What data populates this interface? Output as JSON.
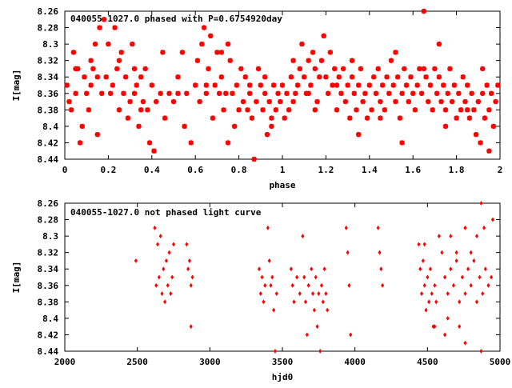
{
  "chart_data": [
    {
      "type": "scatter",
      "title": "040055-1027.0 phased with P=0.6754920day",
      "xlabel": "phase",
      "ylabel": "I[mag]",
      "xlim": [
        0,
        2
      ],
      "ylim": [
        8.26,
        8.44
      ],
      "y_inverted": true,
      "x_ticks": [
        "0",
        "0.2",
        "0.4",
        "0.6",
        "0.8",
        "1",
        "1.2",
        "1.4",
        "1.6",
        "1.8",
        "2"
      ],
      "y_ticks": [
        "8.26",
        "8.28",
        "8.3",
        "8.32",
        "8.34",
        "8.36",
        "8.38",
        "8.4",
        "8.42",
        "8.44"
      ],
      "marker_color": "#ff0000",
      "marker": "star",
      "grid": false,
      "points": [
        [
          0.01,
          8.35
        ],
        [
          0.02,
          8.37
        ],
        [
          0.03,
          8.38
        ],
        [
          0.04,
          8.31
        ],
        [
          0.05,
          8.36
        ],
        [
          0.06,
          8.33
        ],
        [
          0.07,
          8.42
        ],
        [
          0.08,
          8.4
        ],
        [
          0.09,
          8.34
        ],
        [
          0.1,
          8.36
        ],
        [
          0.11,
          8.38
        ],
        [
          0.12,
          8.35
        ],
        [
          0.13,
          8.33
        ],
        [
          0.14,
          8.3
        ],
        [
          0.15,
          8.34
        ],
        [
          0.16,
          8.28
        ],
        [
          0.17,
          8.36
        ],
        [
          0.18,
          8.27
        ],
        [
          0.19,
          8.34
        ],
        [
          0.2,
          8.3
        ],
        [
          0.21,
          8.36
        ],
        [
          0.22,
          8.35
        ],
        [
          0.23,
          8.28
        ],
        [
          0.24,
          8.33
        ],
        [
          0.25,
          8.38
        ],
        [
          0.26,
          8.31
        ],
        [
          0.27,
          8.36
        ],
        [
          0.28,
          8.34
        ],
        [
          0.29,
          8.39
        ],
        [
          0.3,
          8.37
        ],
        [
          0.31,
          8.3
        ],
        [
          0.32,
          8.36
        ],
        [
          0.33,
          8.35
        ],
        [
          0.34,
          8.4
        ],
        [
          0.35,
          8.34
        ],
        [
          0.36,
          8.37
        ],
        [
          0.37,
          8.33
        ],
        [
          0.38,
          8.38
        ],
        [
          0.39,
          8.42
        ],
        [
          0.4,
          8.35
        ],
        [
          0.41,
          8.43
        ],
        [
          0.42,
          8.37
        ],
        [
          0.44,
          8.36
        ],
        [
          0.46,
          8.39
        ],
        [
          0.48,
          8.36
        ],
        [
          0.5,
          8.37
        ],
        [
          0.52,
          8.34
        ],
        [
          0.54,
          8.31
        ],
        [
          0.56,
          8.36
        ],
        [
          0.58,
          8.42
        ],
        [
          0.6,
          8.35
        ],
        [
          0.61,
          8.32
        ],
        [
          0.62,
          8.37
        ],
        [
          0.63,
          8.3
        ],
        [
          0.64,
          8.28
        ],
        [
          0.65,
          8.36
        ],
        [
          0.66,
          8.33
        ],
        [
          0.67,
          8.29
        ],
        [
          0.68,
          8.39
        ],
        [
          0.69,
          8.35
        ],
        [
          0.7,
          8.31
        ],
        [
          0.71,
          8.36
        ],
        [
          0.72,
          8.34
        ],
        [
          0.73,
          8.38
        ],
        [
          0.74,
          8.36
        ],
        [
          0.75,
          8.3
        ],
        [
          0.76,
          8.32
        ],
        [
          0.77,
          8.36
        ],
        [
          0.78,
          8.4
        ],
        [
          0.79,
          8.35
        ],
        [
          0.8,
          8.38
        ],
        [
          0.81,
          8.33
        ],
        [
          0.82,
          8.37
        ],
        [
          0.83,
          8.34
        ],
        [
          0.84,
          8.38
        ],
        [
          0.85,
          8.35
        ],
        [
          0.86,
          8.39
        ],
        [
          0.87,
          8.44
        ],
        [
          0.88,
          8.37
        ],
        [
          0.89,
          8.33
        ],
        [
          0.9,
          8.35
        ],
        [
          0.91,
          8.38
        ],
        [
          0.92,
          8.36
        ],
        [
          0.93,
          8.41
        ],
        [
          0.94,
          8.37
        ],
        [
          0.95,
          8.39
        ],
        [
          0.96,
          8.35
        ],
        [
          0.97,
          8.38
        ],
        [
          0.98,
          8.36
        ],
        [
          0.99,
          8.37
        ],
        [
          1.0,
          8.35
        ],
        [
          1.01,
          8.39
        ],
        [
          1.02,
          8.36
        ],
        [
          1.03,
          8.38
        ],
        [
          1.04,
          8.34
        ],
        [
          1.05,
          8.32
        ],
        [
          1.06,
          8.36
        ],
        [
          1.07,
          8.35
        ],
        [
          1.08,
          8.33
        ],
        [
          1.09,
          8.3
        ],
        [
          1.1,
          8.34
        ],
        [
          1.11,
          8.36
        ],
        [
          1.12,
          8.32
        ],
        [
          1.13,
          8.35
        ],
        [
          1.14,
          8.31
        ],
        [
          1.15,
          8.33
        ],
        [
          1.16,
          8.37
        ],
        [
          1.17,
          8.34
        ],
        [
          1.18,
          8.32
        ],
        [
          1.19,
          8.29
        ],
        [
          1.2,
          8.34
        ],
        [
          1.21,
          8.36
        ],
        [
          1.22,
          8.31
        ],
        [
          1.23,
          8.35
        ],
        [
          1.24,
          8.33
        ],
        [
          1.25,
          8.38
        ],
        [
          1.26,
          8.34
        ],
        [
          1.27,
          8.36
        ],
        [
          1.28,
          8.33
        ],
        [
          1.29,
          8.37
        ],
        [
          1.3,
          8.35
        ],
        [
          1.31,
          8.39
        ],
        [
          1.32,
          8.34
        ],
        [
          1.33,
          8.36
        ],
        [
          1.34,
          8.38
        ],
        [
          1.35,
          8.35
        ],
        [
          1.36,
          8.33
        ],
        [
          1.37,
          8.37
        ],
        [
          1.38,
          8.36
        ],
        [
          1.39,
          8.39
        ],
        [
          1.4,
          8.35
        ],
        [
          1.41,
          8.38
        ],
        [
          1.42,
          8.34
        ],
        [
          1.43,
          8.36
        ],
        [
          1.44,
          8.33
        ],
        [
          1.45,
          8.37
        ],
        [
          1.46,
          8.35
        ],
        [
          1.47,
          8.38
        ],
        [
          1.48,
          8.34
        ],
        [
          1.49,
          8.36
        ],
        [
          1.5,
          8.32
        ],
        [
          1.51,
          8.35
        ],
        [
          1.52,
          8.37
        ],
        [
          1.53,
          8.34
        ],
        [
          1.54,
          8.39
        ],
        [
          1.55,
          8.36
        ],
        [
          1.56,
          8.33
        ],
        [
          1.57,
          8.35
        ],
        [
          1.58,
          8.37
        ],
        [
          1.59,
          8.34
        ],
        [
          1.6,
          8.36
        ],
        [
          1.61,
          8.38
        ],
        [
          1.62,
          8.35
        ],
        [
          1.63,
          8.33
        ],
        [
          1.64,
          8.36
        ],
        [
          1.65,
          8.26
        ],
        [
          1.66,
          8.34
        ],
        [
          1.67,
          8.37
        ],
        [
          1.68,
          8.35
        ],
        [
          1.69,
          8.38
        ],
        [
          1.7,
          8.33
        ],
        [
          1.71,
          8.36
        ],
        [
          1.72,
          8.34
        ],
        [
          1.73,
          8.37
        ],
        [
          1.74,
          8.35
        ],
        [
          1.75,
          8.38
        ],
        [
          1.76,
          8.36
        ],
        [
          1.77,
          8.33
        ],
        [
          1.78,
          8.37
        ],
        [
          1.79,
          8.35
        ],
        [
          1.8,
          8.39
        ],
        [
          1.81,
          8.36
        ],
        [
          1.82,
          8.38
        ],
        [
          1.83,
          8.34
        ],
        [
          1.84,
          8.37
        ],
        [
          1.85,
          8.35
        ],
        [
          1.86,
          8.39
        ],
        [
          1.87,
          8.36
        ],
        [
          1.88,
          8.38
        ],
        [
          1.89,
          8.41
        ],
        [
          1.9,
          8.37
        ],
        [
          1.91,
          8.42
        ],
        [
          1.92,
          8.36
        ],
        [
          1.93,
          8.39
        ],
        [
          1.94,
          8.35
        ],
        [
          1.95,
          8.38
        ],
        [
          1.96,
          8.36
        ],
        [
          1.97,
          8.4
        ],
        [
          1.98,
          8.37
        ],
        [
          1.99,
          8.35
        ],
        [
          0.05,
          8.33
        ],
        [
          0.25,
          8.32
        ],
        [
          0.45,
          8.31
        ],
        [
          0.65,
          8.35
        ],
        [
          0.85,
          8.36
        ],
        [
          1.05,
          8.37
        ],
        [
          1.25,
          8.35
        ],
        [
          1.45,
          8.39
        ],
        [
          1.65,
          8.33
        ],
        [
          1.85,
          8.38
        ],
        [
          0.15,
          8.41
        ],
        [
          0.35,
          8.38
        ],
        [
          0.55,
          8.4
        ],
        [
          0.75,
          8.42
        ],
        [
          0.95,
          8.4
        ],
        [
          1.15,
          8.38
        ],
        [
          1.35,
          8.41
        ],
        [
          1.55,
          8.42
        ],
        [
          1.75,
          8.4
        ],
        [
          1.95,
          8.43
        ],
        [
          0.12,
          8.32
        ],
        [
          0.32,
          8.33
        ],
        [
          0.52,
          8.36
        ],
        [
          0.72,
          8.31
        ],
        [
          0.92,
          8.34
        ],
        [
          1.12,
          8.36
        ],
        [
          1.32,
          8.32
        ],
        [
          1.52,
          8.31
        ],
        [
          1.72,
          8.3
        ],
        [
          1.92,
          8.33
        ]
      ]
    },
    {
      "type": "scatter",
      "title": "040055-1027.0 not phased light curve",
      "xlabel": "hjd0",
      "ylabel": "I[mag]",
      "xlim": [
        2000,
        5000
      ],
      "ylim": [
        8.26,
        8.44
      ],
      "y_inverted": true,
      "x_ticks": [
        "2000",
        "2500",
        "3000",
        "3500",
        "4000",
        "4500",
        "5000"
      ],
      "y_ticks": [
        "8.26",
        "8.28",
        "8.3",
        "8.32",
        "8.34",
        "8.36",
        "8.38",
        "8.4",
        "8.42",
        "8.44"
      ],
      "marker_color": "#ff0000",
      "marker": "diamond",
      "grid": false,
      "points": [
        [
          2490,
          8.33
        ],
        [
          2620,
          8.29
        ],
        [
          2630,
          8.36
        ],
        [
          2640,
          8.31
        ],
        [
          2650,
          8.35
        ],
        [
          2660,
          8.3
        ],
        [
          2670,
          8.37
        ],
        [
          2680,
          8.34
        ],
        [
          2690,
          8.38
        ],
        [
          2700,
          8.33
        ],
        [
          2710,
          8.36
        ],
        [
          2720,
          8.32
        ],
        [
          2730,
          8.37
        ],
        [
          2740,
          8.35
        ],
        [
          2750,
          8.31
        ],
        [
          2840,
          8.31
        ],
        [
          2850,
          8.34
        ],
        [
          2860,
          8.33
        ],
        [
          2870,
          8.36
        ],
        [
          2880,
          8.35
        ],
        [
          2870,
          8.41
        ],
        [
          3340,
          8.34
        ],
        [
          3350,
          8.37
        ],
        [
          3360,
          8.35
        ],
        [
          3370,
          8.38
        ],
        [
          3380,
          8.36
        ],
        [
          3400,
          8.29
        ],
        [
          3410,
          8.33
        ],
        [
          3420,
          8.36
        ],
        [
          3430,
          8.35
        ],
        [
          3440,
          8.39
        ],
        [
          3450,
          8.44
        ],
        [
          3460,
          8.37
        ],
        [
          3560,
          8.34
        ],
        [
          3570,
          8.36
        ],
        [
          3580,
          8.38
        ],
        [
          3600,
          8.35
        ],
        [
          3620,
          8.37
        ],
        [
          3640,
          8.3
        ],
        [
          3650,
          8.35
        ],
        [
          3660,
          8.38
        ],
        [
          3670,
          8.42
        ],
        [
          3680,
          8.36
        ],
        [
          3700,
          8.34
        ],
        [
          3710,
          8.37
        ],
        [
          3720,
          8.39
        ],
        [
          3730,
          8.35
        ],
        [
          3740,
          8.41
        ],
        [
          3750,
          8.37
        ],
        [
          3760,
          8.44
        ],
        [
          3770,
          8.36
        ],
        [
          3780,
          8.38
        ],
        [
          3790,
          8.34
        ],
        [
          3800,
          8.37
        ],
        [
          3810,
          8.39
        ],
        [
          3940,
          8.29
        ],
        [
          3950,
          8.32
        ],
        [
          3960,
          8.36
        ],
        [
          3970,
          8.42
        ],
        [
          4160,
          8.29
        ],
        [
          4170,
          8.32
        ],
        [
          4180,
          8.34
        ],
        [
          4190,
          8.36
        ],
        [
          4440,
          8.31
        ],
        [
          4450,
          8.34
        ],
        [
          4460,
          8.37
        ],
        [
          4470,
          8.33
        ],
        [
          4480,
          8.36
        ],
        [
          4490,
          8.39
        ],
        [
          4500,
          8.35
        ],
        [
          4510,
          8.38
        ],
        [
          4520,
          8.34
        ],
        [
          4530,
          8.37
        ],
        [
          4540,
          8.41
        ],
        [
          4550,
          8.36
        ],
        [
          4560,
          8.38
        ],
        [
          4600,
          8.32
        ],
        [
          4620,
          8.35
        ],
        [
          4640,
          8.37
        ],
        [
          4660,
          8.34
        ],
        [
          4680,
          8.36
        ],
        [
          4700,
          8.33
        ],
        [
          4720,
          8.38
        ],
        [
          4740,
          8.35
        ],
        [
          4760,
          8.37
        ],
        [
          4780,
          8.34
        ],
        [
          4800,
          8.36
        ],
        [
          4820,
          8.33
        ],
        [
          4840,
          8.38
        ],
        [
          4860,
          8.35
        ],
        [
          4880,
          8.37
        ],
        [
          4900,
          8.34
        ],
        [
          4920,
          8.36
        ],
        [
          4940,
          8.35
        ],
        [
          4890,
          8.29
        ],
        [
          4870,
          8.26
        ],
        [
          4840,
          8.3
        ],
        [
          4760,
          8.43
        ],
        [
          4720,
          8.41
        ],
        [
          4620,
          8.42
        ],
        [
          4580,
          8.3
        ],
        [
          4660,
          8.3
        ],
        [
          4700,
          8.32
        ],
        [
          4760,
          8.29
        ],
        [
          4800,
          8.32
        ],
        [
          4870,
          8.44
        ],
        [
          4950,
          8.28
        ],
        [
          4480,
          8.31
        ],
        [
          4550,
          8.41
        ],
        [
          4640,
          8.4
        ]
      ]
    }
  ]
}
